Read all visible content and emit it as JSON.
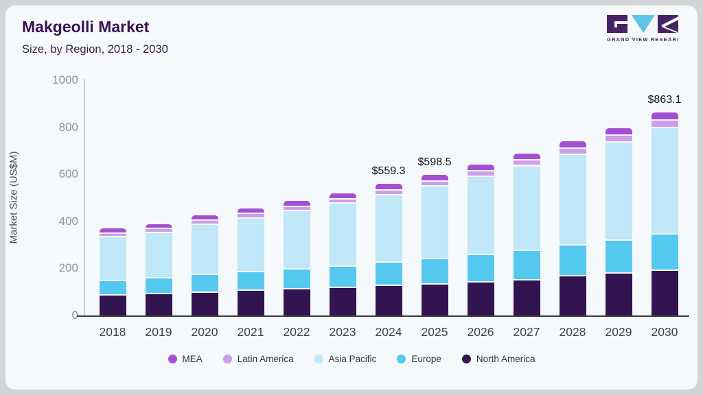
{
  "header": {
    "title": "Makgeolli Market",
    "subtitle": "Size, by Region, 2018 - 2030"
  },
  "logo": {
    "name": "Grand View Research",
    "text": "GRAND VIEW RESEARCH",
    "square_color": "#472264",
    "v_color": "#5fc4e7",
    "text_color": "#3d2656"
  },
  "chart_data": {
    "type": "bar",
    "stacked": true,
    "title": "Makgeolli Market Size, by Region, 2018 - 2030",
    "ylabel": "Market Size (US$M)",
    "xlabel": "",
    "ylim": [
      0,
      1000
    ],
    "yticks": [
      0,
      200,
      400,
      600,
      800,
      1000
    ],
    "grid": false,
    "legend_position": "bottom",
    "categories": [
      "2018",
      "2019",
      "2020",
      "2021",
      "2022",
      "2023",
      "2024",
      "2025",
      "2026",
      "2027",
      "2028",
      "2029",
      "2030"
    ],
    "series": [
      {
        "name": "North America",
        "color": "#321450",
        "values": [
          90,
          97,
          103,
          110,
          116,
          123,
          130,
          138,
          147,
          156,
          171,
          183,
          194
        ]
      },
      {
        "name": "Europe",
        "color": "#55c8f0",
        "values": [
          62,
          66,
          74,
          79,
          85,
          91,
          100,
          108,
          116,
          124,
          132,
          142,
          156
        ]
      },
      {
        "name": "Asia Pacific",
        "color": "#bfe7f7",
        "values": [
          185,
          192,
          213,
          229,
          247,
          266,
          287.3,
          308.5,
          332,
          360,
          386,
          417,
          453.1
        ]
      },
      {
        "name": "Latin America",
        "color": "#cc9fe8",
        "values": [
          16,
          17,
          17,
          18,
          18,
          19,
          20,
          21,
          22,
          24,
          26,
          28,
          31
        ]
      },
      {
        "name": "MEA",
        "color": "#a44fd2",
        "values": [
          16,
          17,
          18,
          19,
          20,
          21,
          22,
          23,
          24,
          25,
          26,
          27,
          29
        ]
      }
    ],
    "totals": [
      369,
      389,
      425,
      455,
      486,
      520,
      559.3,
      598.5,
      641,
      689,
      741,
      797,
      863.1
    ],
    "annotations": [
      {
        "category": "2024",
        "label": "$559.3"
      },
      {
        "category": "2025",
        "label": "$598.5"
      },
      {
        "category": "2030",
        "label": "$863.1"
      }
    ]
  },
  "colors": {
    "card_bg": "#f6f9fb",
    "frame_bg": "#d3d4d5",
    "title": "#3a1254",
    "y_tick": "#8d9298",
    "x_tick": "#3f4348",
    "y_axis_line": "#c9ced3",
    "x_axis_line": "#3c3c40"
  }
}
